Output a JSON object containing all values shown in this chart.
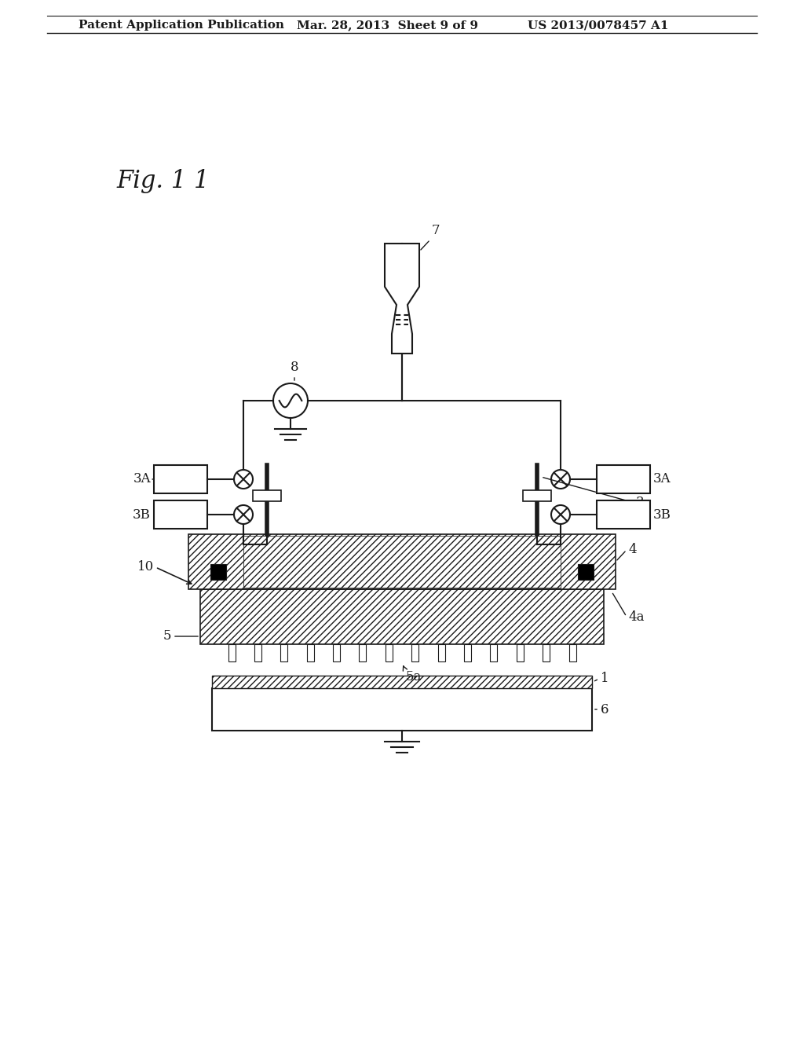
{
  "title_text": "Patent Application Publication",
  "date_text": "Mar. 28, 2013  Sheet 9 of 9",
  "patent_text": "US 2013/0078457 A1",
  "fig_label": "Fig. 1 1",
  "bg_color": "#ffffff",
  "line_color": "#1a1a1a"
}
